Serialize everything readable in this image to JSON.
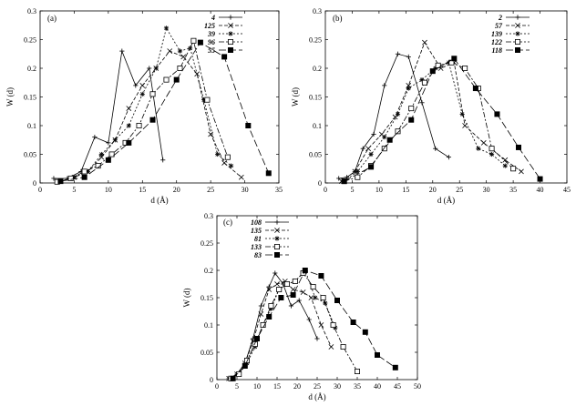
{
  "chart_data": [
    {
      "type": "line",
      "panel_label": "(a)",
      "xlabel": "d (Å)",
      "ylabel": "W (d)",
      "xlim": [
        0,
        35
      ],
      "ylim": [
        0,
        0.3
      ],
      "xticks": [
        0,
        5,
        10,
        15,
        20,
        25,
        30,
        35
      ],
      "yticks": [
        0,
        0.05,
        0.1,
        0.15,
        0.2,
        0.25,
        0.3
      ],
      "legend_position": "top-right",
      "series": [
        {
          "name": "4",
          "marker": "plus",
          "dash": "",
          "points": [
            [
              2,
              0.008
            ],
            [
              4,
              0.008
            ],
            [
              6,
              0.02
            ],
            [
              8,
              0.08
            ],
            [
              10,
              0.07
            ],
            [
              12,
              0.23
            ],
            [
              14,
              0.17
            ],
            [
              16,
              0.2
            ],
            [
              18,
              0.04
            ]
          ]
        },
        {
          "name": "125",
          "marker": "cross",
          "dash": "4 2",
          "points": [
            [
              3,
              0.003
            ],
            [
              5,
              0.01
            ],
            [
              7,
              0.02
            ],
            [
              9,
              0.045
            ],
            [
              11,
              0.075
            ],
            [
              13,
              0.13
            ],
            [
              15,
              0.17
            ],
            [
              17,
              0.2
            ],
            [
              19,
              0.23
            ],
            [
              21,
              0.22
            ],
            [
              23,
              0.19
            ],
            [
              25,
              0.085
            ],
            [
              27,
              0.035
            ],
            [
              29.5,
              0.01
            ]
          ]
        },
        {
          "name": "39",
          "marker": "star",
          "dash": "2 2",
          "points": [
            [
              3,
              0.003
            ],
            [
              5,
              0.01
            ],
            [
              7,
              0.02
            ],
            [
              9,
              0.05
            ],
            [
              11,
              0.075
            ],
            [
              13,
              0.1
            ],
            [
              15,
              0.155
            ],
            [
              17,
              0.2
            ],
            [
              18.5,
              0.27
            ],
            [
              20.5,
              0.23
            ],
            [
              22,
              0.235
            ],
            [
              24,
              0.145
            ],
            [
              26,
              0.05
            ],
            [
              28,
              0.03
            ]
          ]
        },
        {
          "name": "96",
          "marker": "square",
          "dash": "6 2 2 2",
          "points": [
            [
              2.5,
              0.002
            ],
            [
              4.5,
              0.008
            ],
            [
              6.5,
              0.02
            ],
            [
              8.5,
              0.03
            ],
            [
              10.5,
              0.05
            ],
            [
              12.5,
              0.07
            ],
            [
              14.5,
              0.1
            ],
            [
              16.5,
              0.155
            ],
            [
              18.5,
              0.18
            ],
            [
              20.5,
              0.2
            ],
            [
              22.5,
              0.248
            ],
            [
              24.5,
              0.145
            ],
            [
              27.5,
              0.045
            ]
          ]
        },
        {
          "name": "55",
          "marker": "filled-square",
          "dash": "8 3",
          "points": [
            [
              3,
              0.003
            ],
            [
              6.5,
              0.01
            ],
            [
              10,
              0.04
            ],
            [
              13,
              0.07
            ],
            [
              16.5,
              0.11
            ],
            [
              20,
              0.18
            ],
            [
              23.5,
              0.245
            ],
            [
              27,
              0.22
            ],
            [
              30.5,
              0.1
            ],
            [
              33.5,
              0.017
            ]
          ]
        }
      ]
    },
    {
      "type": "line",
      "panel_label": "(b)",
      "xlabel": "d (Å)",
      "ylabel": "W (d)",
      "xlim": [
        0,
        45
      ],
      "ylim": [
        0,
        0.3
      ],
      "xticks": [
        0,
        5,
        10,
        15,
        20,
        25,
        30,
        35,
        40,
        45
      ],
      "yticks": [
        0,
        0.05,
        0.1,
        0.15,
        0.2,
        0.25,
        0.3
      ],
      "legend_position": "top-right",
      "series": [
        {
          "name": "2",
          "marker": "plus",
          "dash": "",
          "points": [
            [
              2.5,
              0.008
            ],
            [
              4,
              0.01
            ],
            [
              5.5,
              0.02
            ],
            [
              7,
              0.06
            ],
            [
              9,
              0.085
            ],
            [
              11,
              0.17
            ],
            [
              13.5,
              0.225
            ],
            [
              15.5,
              0.22
            ],
            [
              18,
              0.14
            ],
            [
              20.5,
              0.06
            ],
            [
              23,
              0.045
            ]
          ]
        },
        {
          "name": "57",
          "marker": "cross",
          "dash": "4 2",
          "points": [
            [
              3,
              0.003
            ],
            [
              5.5,
              0.02
            ],
            [
              8,
              0.06
            ],
            [
              10.5,
              0.085
            ],
            [
              13,
              0.115
            ],
            [
              15.5,
              0.17
            ],
            [
              18.5,
              0.245
            ],
            [
              21.5,
              0.2
            ],
            [
              24,
              0.21
            ],
            [
              26,
              0.1
            ],
            [
              29.5,
              0.07
            ],
            [
              33.5,
              0.04
            ],
            [
              36.5,
              0.02
            ]
          ]
        },
        {
          "name": "139",
          "marker": "star",
          "dash": "2 2",
          "points": [
            [
              3.5,
              0.003
            ],
            [
              6,
              0.02
            ],
            [
              8.5,
              0.05
            ],
            [
              11,
              0.08
            ],
            [
              13.5,
              0.12
            ],
            [
              15.5,
              0.165
            ],
            [
              18,
              0.18
            ],
            [
              20.5,
              0.2
            ],
            [
              23,
              0.21
            ],
            [
              25.5,
              0.12
            ],
            [
              28.5,
              0.06
            ],
            [
              31,
              0.05
            ],
            [
              33.5,
              0.03
            ]
          ]
        },
        {
          "name": "122",
          "marker": "square",
          "dash": "6 2 2 2",
          "points": [
            [
              3.5,
              0.003
            ],
            [
              6,
              0.01
            ],
            [
              8.5,
              0.03
            ],
            [
              11,
              0.06
            ],
            [
              13.5,
              0.09
            ],
            [
              16,
              0.13
            ],
            [
              18.5,
              0.175
            ],
            [
              21,
              0.205
            ],
            [
              23.5,
              0.21
            ],
            [
              26,
              0.2
            ],
            [
              28.5,
              0.165
            ],
            [
              31,
              0.06
            ],
            [
              35,
              0.025
            ]
          ]
        },
        {
          "name": "118",
          "marker": "filled-square",
          "dash": "8 3",
          "points": [
            [
              3.5,
              0.003
            ],
            [
              8.5,
              0.028
            ],
            [
              12,
              0.075
            ],
            [
              16,
              0.11
            ],
            [
              20,
              0.195
            ],
            [
              24,
              0.217
            ],
            [
              28,
              0.165
            ],
            [
              32,
              0.12
            ],
            [
              36,
              0.062
            ],
            [
              40,
              0.007
            ]
          ]
        }
      ]
    },
    {
      "type": "line",
      "panel_label": "(c)",
      "xlabel": "d (Å)",
      "ylabel": "W (d)",
      "xlim": [
        0,
        50
      ],
      "ylim": [
        0,
        0.3
      ],
      "xticks": [
        0,
        5,
        10,
        15,
        20,
        25,
        30,
        35,
        40,
        45,
        50
      ],
      "yticks": [
        0,
        0.05,
        0.1,
        0.15,
        0.2,
        0.25,
        0.3
      ],
      "legend_position": "top-left",
      "series": [
        {
          "name": "108",
          "marker": "plus",
          "dash": "",
          "points": [
            [
              3,
              0.002
            ],
            [
              5,
              0.01
            ],
            [
              7,
              0.03
            ],
            [
              9,
              0.075
            ],
            [
              11,
              0.135
            ],
            [
              13,
              0.17
            ],
            [
              14.5,
              0.195
            ],
            [
              16.5,
              0.175
            ],
            [
              18.5,
              0.135
            ],
            [
              20.5,
              0.145
            ],
            [
              23,
              0.11
            ],
            [
              25,
              0.075
            ]
          ]
        },
        {
          "name": "135",
          "marker": "cross",
          "dash": "4 2",
          "points": [
            [
              3,
              0.002
            ],
            [
              5,
              0.01
            ],
            [
              7,
              0.03
            ],
            [
              9,
              0.07
            ],
            [
              11,
              0.12
            ],
            [
              13,
              0.165
            ],
            [
              15,
              0.175
            ],
            [
              17,
              0.18
            ],
            [
              19,
              0.165
            ],
            [
              21.5,
              0.16
            ],
            [
              23.5,
              0.15
            ],
            [
              26,
              0.1
            ],
            [
              28.5,
              0.06
            ]
          ]
        },
        {
          "name": "81",
          "marker": "star",
          "dash": "2 2",
          "points": [
            [
              3.5,
              0.002
            ],
            [
              5.5,
              0.01
            ],
            [
              7.5,
              0.03
            ],
            [
              9.5,
              0.06
            ],
            [
              11.5,
              0.1
            ],
            [
              13.5,
              0.13
            ],
            [
              15.5,
              0.165
            ],
            [
              17.5,
              0.175
            ],
            [
              19.5,
              0.18
            ],
            [
              22,
              0.2
            ],
            [
              24.5,
              0.15
            ],
            [
              27,
              0.14
            ],
            [
              29.5,
              0.095
            ]
          ]
        },
        {
          "name": "133",
          "marker": "square",
          "dash": "6 2 2 2",
          "points": [
            [
              3.5,
              0.002
            ],
            [
              5.5,
              0.01
            ],
            [
              7.5,
              0.035
            ],
            [
              9.5,
              0.065
            ],
            [
              11.5,
              0.1
            ],
            [
              13.5,
              0.135
            ],
            [
              15.5,
              0.165
            ],
            [
              17.5,
              0.175
            ],
            [
              19.5,
              0.18
            ],
            [
              21.5,
              0.195
            ],
            [
              24,
              0.17
            ],
            [
              26.5,
              0.15
            ],
            [
              29,
              0.1
            ],
            [
              31.5,
              0.06
            ],
            [
              35,
              0.015
            ]
          ]
        },
        {
          "name": "83",
          "marker": "filled-square",
          "dash": "8 3",
          "points": [
            [
              4,
              0.002
            ],
            [
              7,
              0.025
            ],
            [
              10,
              0.075
            ],
            [
              13,
              0.115
            ],
            [
              16,
              0.15
            ],
            [
              19,
              0.155
            ],
            [
              22,
              0.2
            ],
            [
              26,
              0.19
            ],
            [
              30,
              0.145
            ],
            [
              34,
              0.105
            ],
            [
              37,
              0.087
            ],
            [
              40,
              0.045
            ],
            [
              44.5,
              0.022
            ]
          ]
        }
      ]
    }
  ]
}
